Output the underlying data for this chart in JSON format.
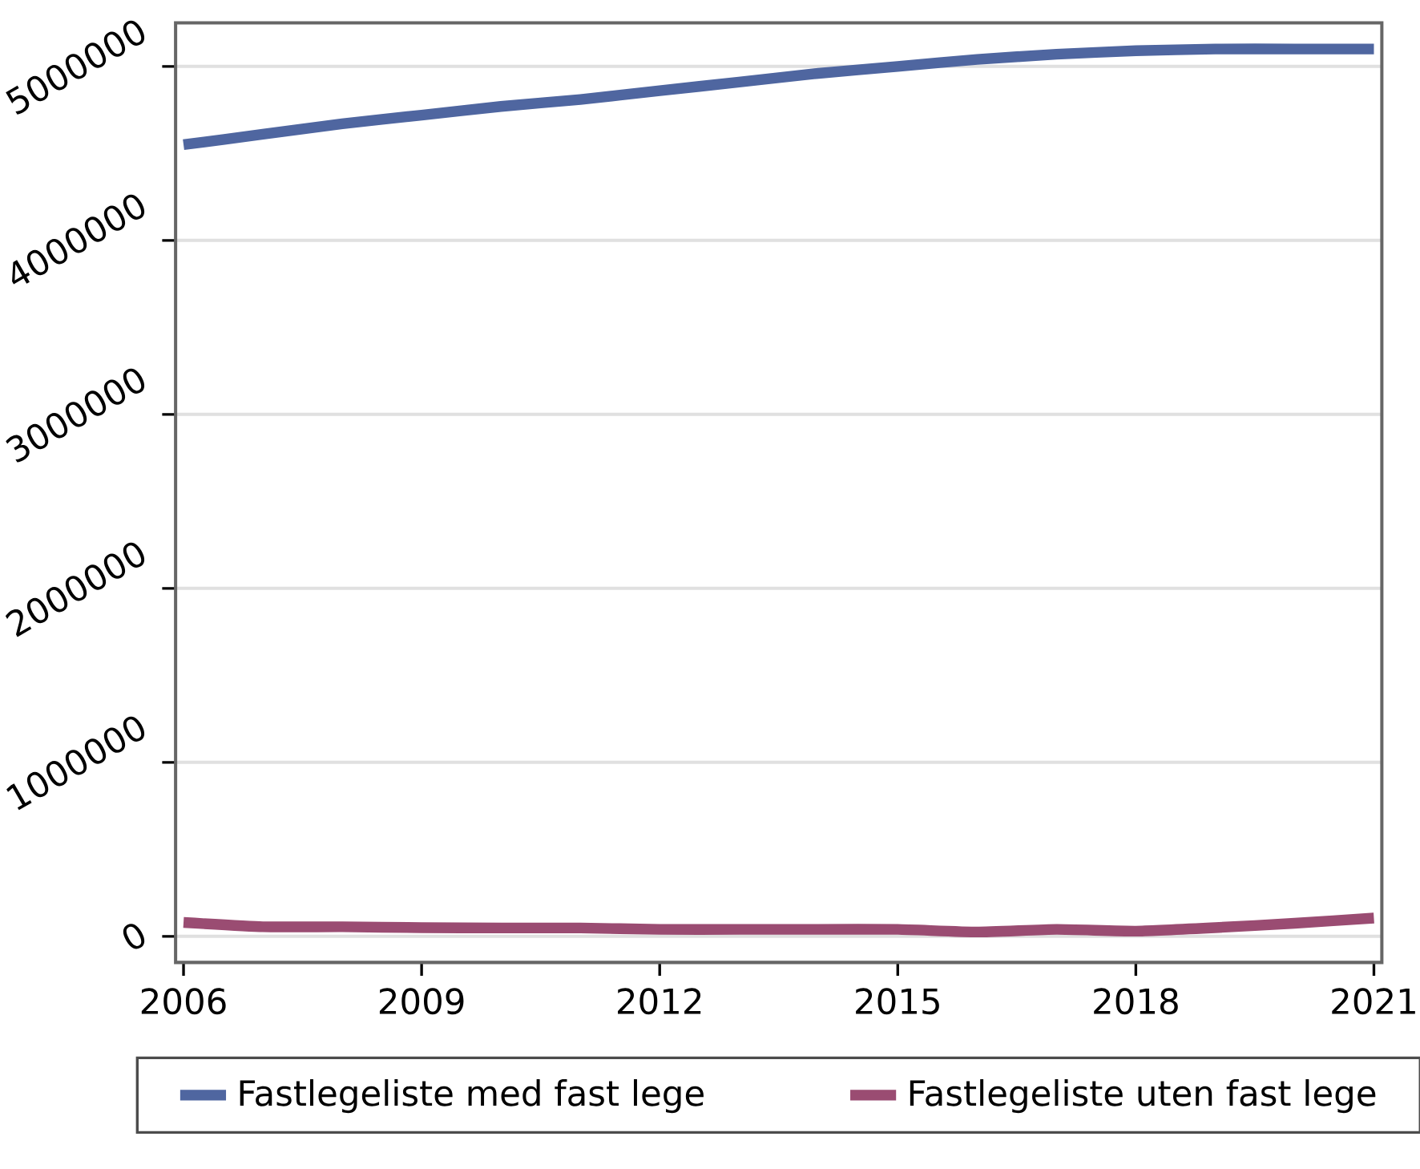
{
  "chart_data": {
    "type": "line",
    "x": [
      2006,
      2007,
      2008,
      2009,
      2010,
      2011,
      2012,
      2013,
      2014,
      2015,
      2016,
      2017,
      2018,
      2019,
      2020,
      2021
    ],
    "series": [
      {
        "name": "Fastlegeliste med fast lege",
        "color": "#4f66a0",
        "values": [
          4550000,
          4610000,
          4670000,
          4720000,
          4770000,
          4810000,
          4860000,
          4910000,
          4960000,
          5000000,
          5040000,
          5070000,
          5090000,
          5100000,
          5100000,
          5100000
        ]
      },
      {
        "name": "Fastlegeliste uten fast lege",
        "color": "#9a4c72",
        "values": [
          80000,
          55000,
          55000,
          50000,
          48000,
          48000,
          40000,
          40000,
          40000,
          40000,
          25000,
          40000,
          30000,
          50000,
          75000,
          105000
        ]
      }
    ],
    "xlim": [
      2005.9,
      2021.1
    ],
    "xticks": [
      2006,
      2009,
      2012,
      2015,
      2018,
      2021
    ],
    "ylim": [
      -150000,
      5250000
    ],
    "yticks": [
      0,
      1000000,
      2000000,
      3000000,
      4000000,
      5000000
    ],
    "grid": "y",
    "legend": "bottom",
    "marker": "none",
    "line_style": "solid"
  }
}
